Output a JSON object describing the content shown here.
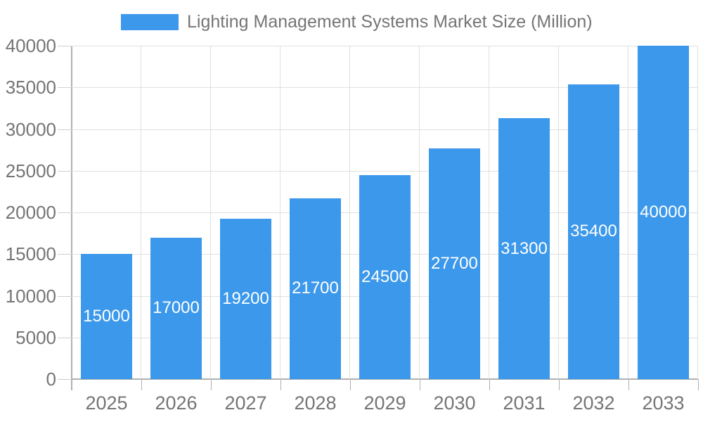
{
  "chart_data": {
    "type": "bar",
    "title": "Lighting Management Systems Market Size (Million)",
    "legend": {
      "label": "Lighting Management Systems Market Size (Million)",
      "position": "top"
    },
    "categories": [
      "2025",
      "2026",
      "2027",
      "2028",
      "2029",
      "2030",
      "2031",
      "2032",
      "2033"
    ],
    "series": [
      {
        "name": "Lighting Management Systems Market Size (Million)",
        "values": [
          15000,
          17000,
          19200,
          21700,
          24500,
          27700,
          31300,
          35400,
          40000
        ]
      }
    ],
    "value_labels": [
      "15000",
      "17000",
      "19200",
      "21700",
      "24500",
      "27700",
      "31300",
      "35400",
      "40000"
    ],
    "xlabel": "",
    "ylabel": "",
    "ylim": [
      0,
      40000
    ],
    "ytick_step": 5000,
    "ytick_labels": [
      "0",
      "5000",
      "10000",
      "15000",
      "20000",
      "25000",
      "30000",
      "35000",
      "40000"
    ],
    "grid": true,
    "colors": {
      "bar": "#3B98EB",
      "bar_label": "#ffffff",
      "axis_text": "#757575",
      "gridline": "#e0e0e0",
      "axis_line": "#b0b0b0",
      "y_tick": "#cfcfcf",
      "background": "#ffffff"
    }
  }
}
